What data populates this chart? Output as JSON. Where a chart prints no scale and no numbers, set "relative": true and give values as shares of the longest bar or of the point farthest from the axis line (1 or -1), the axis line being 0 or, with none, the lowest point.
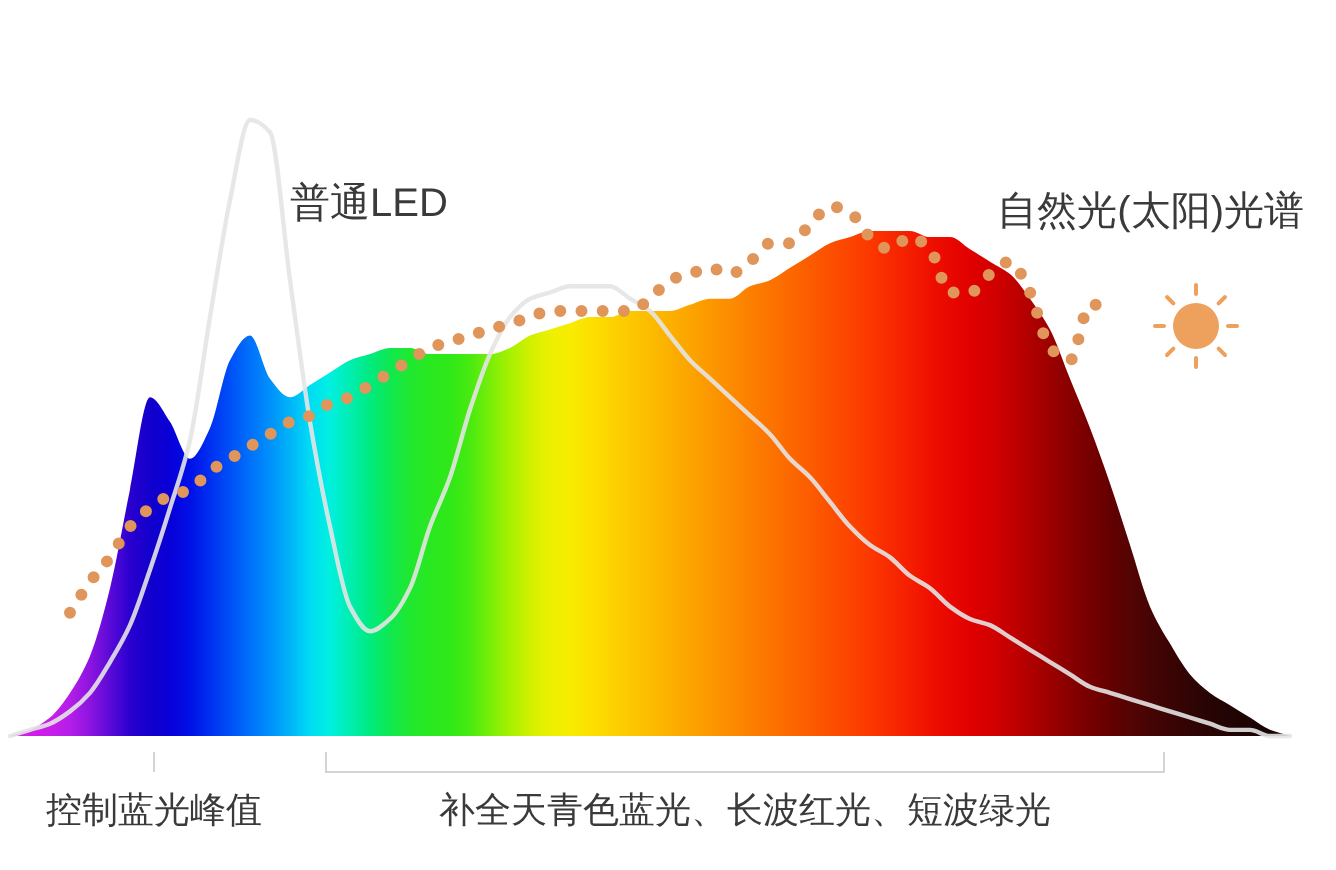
{
  "chart_data": {
    "type": "area",
    "relative": true,
    "legend": false,
    "categories": [
      null,
      null,
      null,
      null,
      null,
      null,
      null,
      null,
      null,
      null,
      null,
      null,
      null,
      null,
      null,
      null,
      null,
      null,
      null,
      null,
      null,
      null,
      null,
      null,
      null,
      null,
      null,
      null,
      null,
      null,
      null,
      null,
      null,
      null,
      null,
      null,
      null,
      null,
      null,
      null,
      null,
      null,
      null,
      null,
      null,
      null,
      null,
      null,
      null,
      null,
      null,
      null,
      null,
      null,
      null,
      null,
      null,
      null,
      null,
      null,
      null,
      null,
      null,
      null,
      null
    ],
    "series": [
      {
        "colors": [
          "#d21ee6",
          "#d01ee8",
          "#c81ee8",
          "#b41ee8",
          "#8c14e0",
          "#5a0ad8",
          "#2a00d0",
          "#1200cc",
          "#0800d8",
          "#0010e8",
          "#0030f0",
          "#0050f8",
          "#0070fa",
          "#0090fa",
          "#00b4f8",
          "#00dcf4",
          "#00f0e0",
          "#00eeb0",
          "#00ea80",
          "#10e850",
          "#20e830",
          "#28e820",
          "#30e818",
          "#48ea10",
          "#78ee08",
          "#a8f000",
          "#d0f000",
          "#ecf000",
          "#f8ec00",
          "#fce000",
          "#fcd400",
          "#fcc800",
          "#fcbc00",
          "#fcb000",
          "#fca400",
          "#fc9800",
          "#fc8c00",
          "#fc8000",
          "#fc7400",
          "#fc6800",
          "#fc5c00",
          "#fc5000",
          "#fc4400",
          "#fc3800",
          "#f82a00",
          "#f41e00",
          "#f01000",
          "#e80800",
          "#e00000",
          "#d40000",
          "#c40000",
          "#b00000",
          "#9c0000",
          "#880000",
          "#760000",
          "#640000",
          "#540404",
          "#460404",
          "#3a0404",
          "#300404",
          "#280404",
          "#220404",
          "#1e0404",
          "#1a0404",
          "#180404"
        ],
        "values": [
          0,
          0.01,
          0.03,
          0.07,
          0.13,
          0.24,
          0.4,
          0.55,
          0.51,
          0.45,
          0.5,
          0.61,
          0.65,
          0.58,
          0.55,
          0.57,
          0.59,
          0.61,
          0.62,
          0.63,
          0.63,
          0.62,
          0.62,
          0.62,
          0.62,
          0.63,
          0.65,
          0.66,
          0.67,
          0.68,
          0.68,
          0.69,
          0.69,
          0.69,
          0.7,
          0.71,
          0.71,
          0.73,
          0.74,
          0.76,
          0.78,
          0.8,
          0.81,
          0.82,
          0.82,
          0.82,
          0.81,
          0.81,
          0.79,
          0.77,
          0.75,
          0.71,
          0.66,
          0.58,
          0.5,
          0.41,
          0.31,
          0.21,
          0.15,
          0.1,
          0.07,
          0.05,
          0.03,
          0.01,
          0
        ]
      },
      {
        "type": "line",
        "name": "普通LED",
        "color": "#e4e4e4",
        "line_style": "solid",
        "values": [
          0,
          0.01,
          0.02,
          0.04,
          0.07,
          0.12,
          0.18,
          0.27,
          0.37,
          0.48,
          0.68,
          0.87,
          1,
          0.98,
          0.74,
          0.51,
          0.34,
          0.21,
          0.17,
          0.19,
          0.24,
          0.34,
          0.42,
          0.53,
          0.62,
          0.68,
          0.71,
          0.72,
          0.73,
          0.73,
          0.73,
          0.71,
          0.69,
          0.65,
          0.61,
          0.58,
          0.55,
          0.52,
          0.49,
          0.45,
          0.42,
          0.38,
          0.34,
          0.31,
          0.29,
          0.26,
          0.24,
          0.21,
          0.19,
          0.18,
          0.16,
          0.14,
          0.12,
          0.1,
          0.08,
          0.07,
          0.06,
          0.05,
          0.04,
          0.03,
          0.02,
          0.01,
          0.01,
          0,
          0
        ]
      },
      {
        "type": "line",
        "name": "自然光(太阳)光谱",
        "color": "#e0955a",
        "line_style": "dotted",
        "values": [
          null,
          null,
          null,
          0.2,
          0.25,
          0.29,
          0.34,
          0.37,
          0.39,
          0.4,
          0.43,
          0.45,
          0.47,
          0.49,
          0.51,
          0.52,
          0.54,
          0.55,
          0.57,
          0.59,
          0.61,
          0.63,
          0.64,
          0.65,
          0.66,
          0.67,
          0.68,
          0.69,
          0.69,
          0.69,
          0.69,
          0.69,
          0.71,
          0.74,
          0.75,
          0.76,
          0.75,
          0.77,
          0.8,
          0.8,
          0.83,
          0.86,
          0.85,
          0.81,
          0.79,
          0.81,
          0.79,
          0.72,
          0.72,
          0.75,
          0.77,
          0.72,
          0.63,
          0.61,
          0.7,
          0.7,
          null,
          null,
          null,
          null,
          null,
          null,
          null,
          null,
          null
        ]
      }
    ],
    "annotations": [
      "控制蓝光峰值",
      "补全天青色蓝光、长波红光、短波绿光"
    ]
  }
}
